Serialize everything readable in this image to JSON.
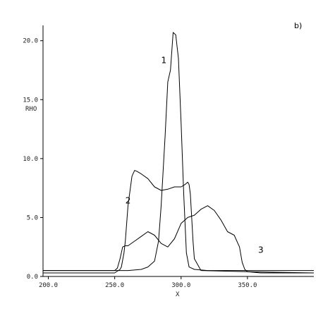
{
  "chart_data": {
    "type": "line",
    "panel_label": "b)",
    "xlabel": "X",
    "ylabel": "RHO",
    "xlim": [
      196,
      400
    ],
    "ylim": [
      0,
      21.3
    ],
    "x_ticks": [
      {
        "value": 200,
        "label": "200.0"
      },
      {
        "value": 250,
        "label": "250.0"
      },
      {
        "value": 300,
        "label": "300.0"
      },
      {
        "value": 350,
        "label": "350.0"
      }
    ],
    "y_ticks": [
      {
        "value": 0,
        "label": "0.0"
      },
      {
        "value": 5,
        "label": "5.0"
      },
      {
        "value": 10,
        "label": "10.0"
      },
      {
        "value": 15,
        "label": "15.0"
      },
      {
        "value": 20,
        "label": "20.0"
      }
    ],
    "grid": false,
    "series": [
      {
        "name": "1",
        "label_at": [
          285,
          18.1
        ],
        "x": [
          196,
          260,
          270,
          275,
          280,
          283,
          285,
          288,
          290,
          292,
          294,
          296,
          298,
          300,
          302,
          304,
          306,
          310,
          320,
          350,
          400
        ],
        "y": [
          0.5,
          0.5,
          0.6,
          0.8,
          1.3,
          3.0,
          6.0,
          12.0,
          16.5,
          17.5,
          20.7,
          20.5,
          18.5,
          13.0,
          7.0,
          2.0,
          0.8,
          0.6,
          0.5,
          0.5,
          0.5
        ]
      },
      {
        "name": "2",
        "label_at": [
          258,
          6.2
        ],
        "x": [
          196,
          250,
          254,
          255,
          257,
          258,
          260,
          263,
          265,
          267,
          270,
          275,
          280,
          285,
          290,
          295,
          300,
          303,
          305,
          306,
          307,
          308,
          309,
          310,
          315,
          350,
          400
        ],
        "y": [
          0.3,
          0.3,
          0.6,
          0.8,
          2.0,
          3.0,
          6.0,
          8.5,
          9.0,
          8.9,
          8.7,
          8.3,
          7.6,
          7.3,
          7.4,
          7.6,
          7.6,
          7.8,
          8.0,
          7.8,
          7.0,
          5.0,
          3.0,
          1.5,
          0.5,
          0.4,
          0.3
        ]
      },
      {
        "name": "3",
        "label_at": [
          358,
          2.0
        ],
        "x": [
          196,
          250,
          252,
          254,
          256,
          258,
          260,
          265,
          270,
          275,
          280,
          285,
          290,
          295,
          300,
          305,
          310,
          315,
          320,
          325,
          330,
          335,
          340,
          344,
          346,
          348,
          350,
          360,
          380,
          400
        ],
        "y": [
          0.5,
          0.5,
          0.7,
          1.5,
          2.5,
          2.6,
          2.6,
          3.0,
          3.4,
          3.8,
          3.5,
          2.8,
          2.5,
          3.2,
          4.5,
          5.0,
          5.2,
          5.7,
          6.0,
          5.6,
          4.8,
          3.8,
          3.5,
          2.5,
          1.2,
          0.6,
          0.4,
          0.3,
          0.3,
          0.3
        ]
      }
    ]
  }
}
